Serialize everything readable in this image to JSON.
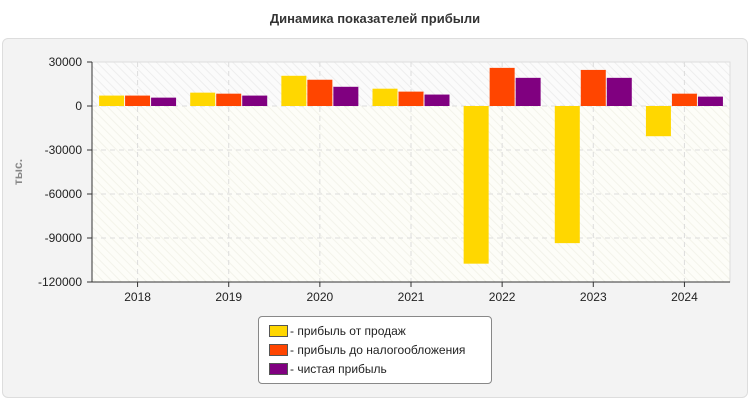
{
  "chart_data": {
    "type": "bar",
    "title": "Динамика показателей прибыли",
    "ylabel": "тыс.",
    "categories": [
      "2018",
      "2019",
      "2020",
      "2021",
      "2022",
      "2023",
      "2024"
    ],
    "ylim": [
      -120000,
      30000
    ],
    "yticks": [
      30000,
      0,
      -30000,
      -60000,
      -90000,
      -120000
    ],
    "grid": true,
    "legend_position": "bottom",
    "series": [
      {
        "name": "- прибыль от продаж",
        "color": "#FFD700",
        "values": [
          7100,
          9100,
          20600,
          11800,
          -107500,
          -93500,
          -20600
        ]
      },
      {
        "name": "- прибыль до налогообложения",
        "color": "#FF4500",
        "values": [
          7100,
          8400,
          17900,
          9800,
          26000,
          24600,
          8400
        ]
      },
      {
        "name": "- чистая прибыль",
        "color": "#800080",
        "values": [
          5700,
          7100,
          13100,
          7800,
          19200,
          19200,
          6400
        ]
      }
    ]
  }
}
